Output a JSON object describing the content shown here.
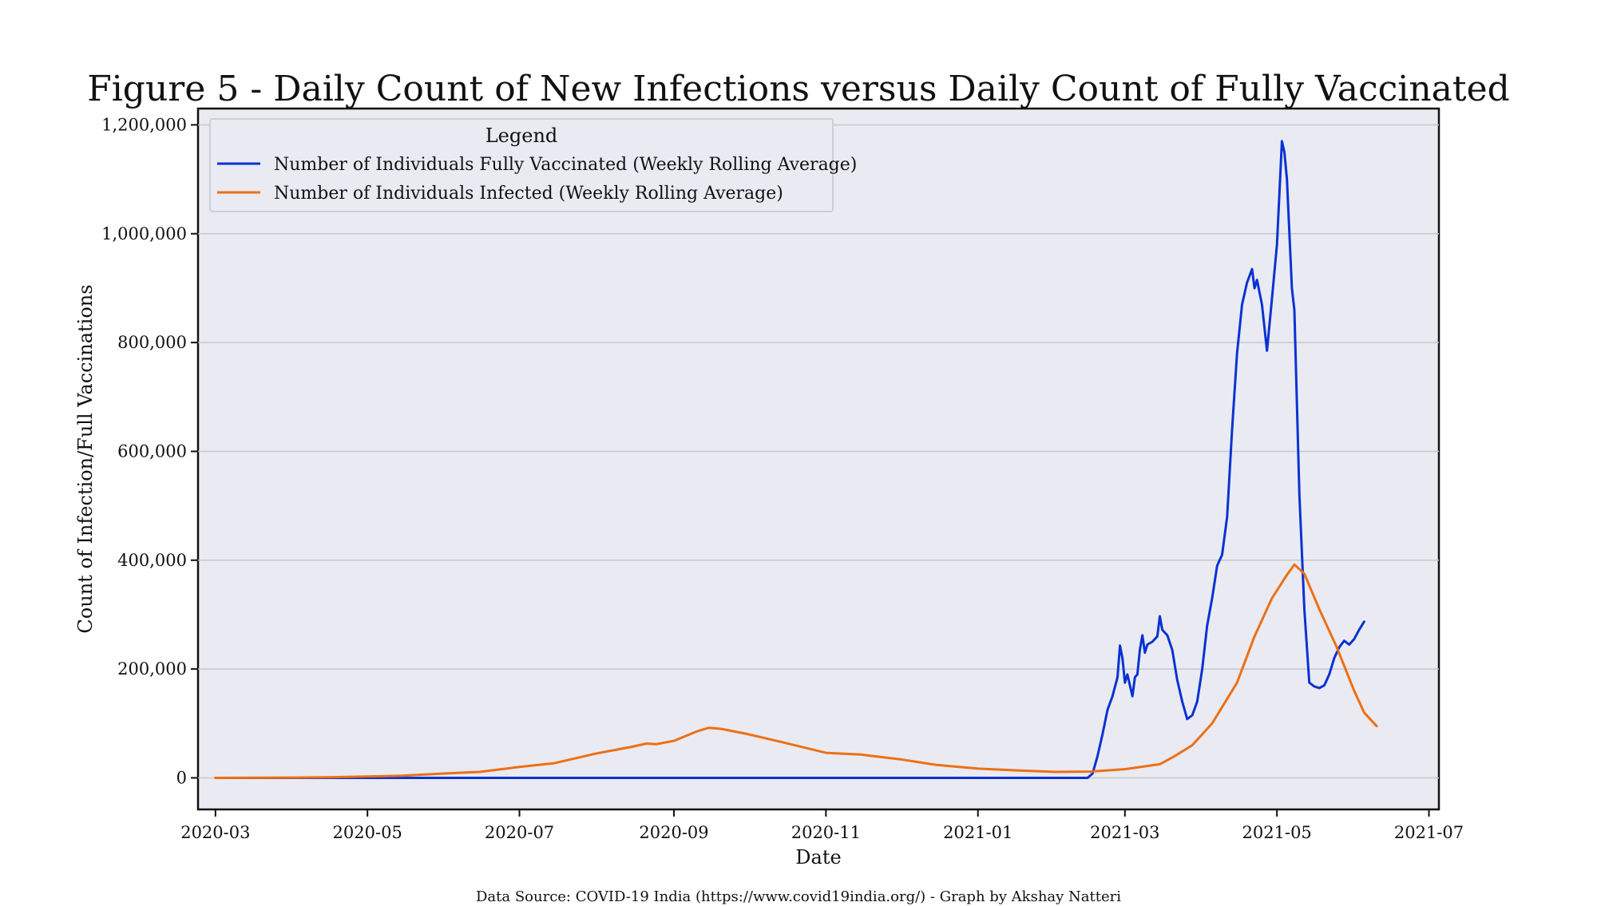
{
  "chart_data": {
    "type": "line",
    "title": "Figure 5 - Daily Count of New Infections versus Daily Count of Fully Vaccinated",
    "xlabel": "Date",
    "ylabel": "Count of Infection/Full Vaccinations",
    "source": "Data Source:  COVID-19 India (https://www.covid19india.org/) - Graph by Akshay Natteri",
    "xlim": [
      "2020-02-23",
      "2021-07-05"
    ],
    "ylim": [
      -58000,
      1230000
    ],
    "x_ticks": [
      "2020-03",
      "2020-05",
      "2020-07",
      "2020-09",
      "2020-11",
      "2021-01",
      "2021-03",
      "2021-05",
      "2021-07"
    ],
    "y_ticks": [
      0,
      200000,
      400000,
      600000,
      800000,
      1000000,
      1200000
    ],
    "y_tick_labels": [
      "0",
      "200,000",
      "400,000",
      "600,000",
      "800,000",
      "1,000,000",
      "1,200,000"
    ],
    "grid": "horizontal",
    "legend": {
      "title": "Legend",
      "placement": "top-left"
    },
    "colors": {
      "background": "#eaeaf2",
      "grid": "#c8c8c8",
      "vaccinated": "#0a32d2",
      "infected": "#ec7014"
    },
    "series": [
      {
        "name": "Number of Individuals Fully Vaccinated (Weekly Rolling Average)",
        "color": "#0a32d2",
        "points": [
          [
            "2021-02-14",
            0
          ],
          [
            "2021-02-16",
            8000
          ],
          [
            "2021-02-18",
            40000
          ],
          [
            "2021-02-20",
            80000
          ],
          [
            "2021-02-22",
            125000
          ],
          [
            "2021-02-24",
            150000
          ],
          [
            "2021-02-26",
            185000
          ],
          [
            "2021-02-27",
            243000
          ],
          [
            "2021-02-28",
            220000
          ],
          [
            "2021-03-01",
            175000
          ],
          [
            "2021-03-02",
            190000
          ],
          [
            "2021-03-04",
            150000
          ],
          [
            "2021-03-05",
            185000
          ],
          [
            "2021-03-06",
            190000
          ],
          [
            "2021-03-07",
            235000
          ],
          [
            "2021-03-08",
            262000
          ],
          [
            "2021-03-09",
            230000
          ],
          [
            "2021-03-10",
            245000
          ],
          [
            "2021-03-12",
            250000
          ],
          [
            "2021-03-14",
            260000
          ],
          [
            "2021-03-15",
            297000
          ],
          [
            "2021-03-16",
            272000
          ],
          [
            "2021-03-18",
            262000
          ],
          [
            "2021-03-20",
            235000
          ],
          [
            "2021-03-22",
            180000
          ],
          [
            "2021-03-24",
            140000
          ],
          [
            "2021-03-26",
            108000
          ],
          [
            "2021-03-28",
            115000
          ],
          [
            "2021-03-30",
            140000
          ],
          [
            "2021-04-01",
            200000
          ],
          [
            "2021-04-03",
            280000
          ],
          [
            "2021-04-05",
            330000
          ],
          [
            "2021-04-07",
            390000
          ],
          [
            "2021-04-09",
            410000
          ],
          [
            "2021-04-11",
            480000
          ],
          [
            "2021-04-13",
            640000
          ],
          [
            "2021-04-15",
            780000
          ],
          [
            "2021-04-17",
            870000
          ],
          [
            "2021-04-19",
            910000
          ],
          [
            "2021-04-21",
            935000
          ],
          [
            "2021-04-22",
            900000
          ],
          [
            "2021-04-23",
            915000
          ],
          [
            "2021-04-25",
            870000
          ],
          [
            "2021-04-27",
            785000
          ],
          [
            "2021-04-29",
            880000
          ],
          [
            "2021-05-01",
            980000
          ],
          [
            "2021-05-03",
            1170000
          ],
          [
            "2021-05-04",
            1150000
          ],
          [
            "2021-05-05",
            1100000
          ],
          [
            "2021-05-07",
            900000
          ],
          [
            "2021-05-08",
            860000
          ],
          [
            "2021-05-10",
            520000
          ],
          [
            "2021-05-12",
            310000
          ],
          [
            "2021-05-14",
            175000
          ],
          [
            "2021-05-16",
            168000
          ],
          [
            "2021-05-18",
            165000
          ],
          [
            "2021-05-20",
            170000
          ],
          [
            "2021-05-22",
            190000
          ],
          [
            "2021-05-24",
            220000
          ],
          [
            "2021-05-26",
            240000
          ],
          [
            "2021-05-28",
            252000
          ],
          [
            "2021-05-30",
            245000
          ],
          [
            "2021-06-01",
            255000
          ],
          [
            "2021-06-03",
            272000
          ],
          [
            "2021-06-05",
            287000
          ]
        ],
        "zero_from": "2020-03-01"
      },
      {
        "name": "Number of Individuals Infected (Weekly Rolling Average)",
        "color": "#ec7014",
        "points": [
          [
            "2020-03-01",
            0
          ],
          [
            "2020-04-01",
            500
          ],
          [
            "2020-04-15",
            1000
          ],
          [
            "2020-05-01",
            2500
          ],
          [
            "2020-05-15",
            4000
          ],
          [
            "2020-06-01",
            8000
          ],
          [
            "2020-06-15",
            11000
          ],
          [
            "2020-07-01",
            20000
          ],
          [
            "2020-07-15",
            27000
          ],
          [
            "2020-08-01",
            45000
          ],
          [
            "2020-08-15",
            57000
          ],
          [
            "2020-08-21",
            63000
          ],
          [
            "2020-08-25",
            62000
          ],
          [
            "2020-09-01",
            68000
          ],
          [
            "2020-09-10",
            85000
          ],
          [
            "2020-09-15",
            92000
          ],
          [
            "2020-09-20",
            90000
          ],
          [
            "2020-10-01",
            80000
          ],
          [
            "2020-10-15",
            65000
          ],
          [
            "2020-11-01",
            46000
          ],
          [
            "2020-11-15",
            43000
          ],
          [
            "2020-11-20",
            40000
          ],
          [
            "2020-12-01",
            34000
          ],
          [
            "2020-12-15",
            24000
          ],
          [
            "2021-01-01",
            17000
          ],
          [
            "2021-01-15",
            14000
          ],
          [
            "2021-02-01",
            11000
          ],
          [
            "2021-02-15",
            11500
          ],
          [
            "2021-03-01",
            16000
          ],
          [
            "2021-03-15",
            25000
          ],
          [
            "2021-03-21",
            40000
          ],
          [
            "2021-03-28",
            60000
          ],
          [
            "2021-04-05",
            100000
          ],
          [
            "2021-04-15",
            175000
          ],
          [
            "2021-04-22",
            260000
          ],
          [
            "2021-04-29",
            330000
          ],
          [
            "2021-05-05",
            373000
          ],
          [
            "2021-05-08",
            392000
          ],
          [
            "2021-05-12",
            375000
          ],
          [
            "2021-05-18",
            310000
          ],
          [
            "2021-05-25",
            240000
          ],
          [
            "2021-06-01",
            160000
          ],
          [
            "2021-06-05",
            120000
          ],
          [
            "2021-06-10",
            95000
          ]
        ]
      }
    ]
  }
}
